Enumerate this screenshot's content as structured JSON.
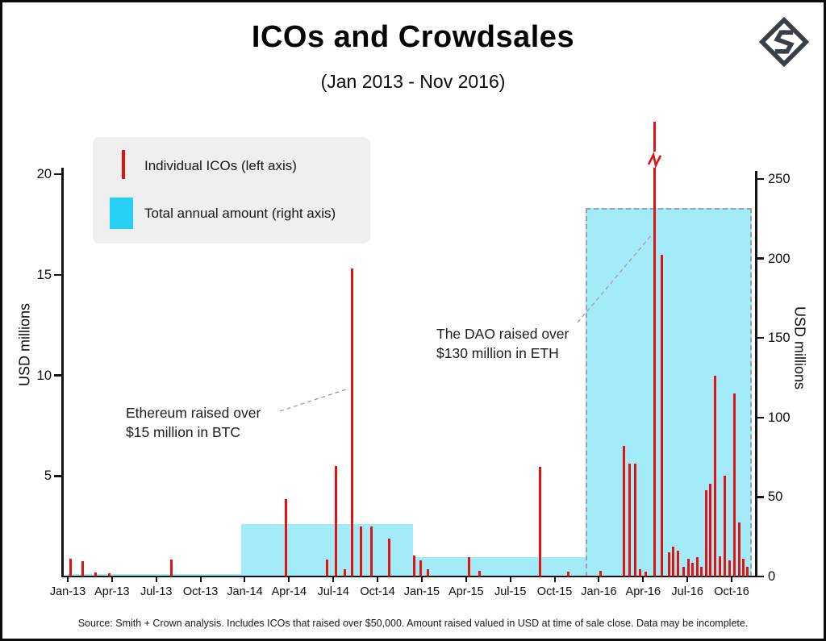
{
  "header": {
    "title": "ICOs and Crowdsales",
    "subtitle": "(Jan 2013 - Nov 2016)"
  },
  "legend": {
    "ico_label": "Individual ICOs (left axis)",
    "annual_label": "Total annual amount (right axis)"
  },
  "annotations": {
    "ethereum": {
      "line1": "Ethereum raised over",
      "line2": "$15 million in BTC"
    },
    "dao": {
      "line1": "The DAO raised over",
      "line2": "$130 million in ETH"
    }
  },
  "footer": {
    "source": "Source: Smith + Crown analysis. Includes ICOs that raised over $50,000. Amount raised valued in USD at time of sale close. Data may be incomplete."
  },
  "chart_data": {
    "type": "bar",
    "title": "ICOs and Crowdsales",
    "subtitle": "(Jan 2013 - Nov 2016)",
    "left_axis": {
      "label": "USD millions",
      "range": [
        0,
        20
      ],
      "ticks": [
        5,
        10,
        15,
        20
      ]
    },
    "right_axis": {
      "label": "USD millions",
      "range": [
        0,
        250
      ],
      "ticks": [
        0,
        50,
        100,
        150,
        200,
        250
      ]
    },
    "x_axis": {
      "tick_labels": [
        "Jan-13",
        "Apr-13",
        "Jul-13",
        "Oct-13",
        "Jan-14",
        "Apr-14",
        "Jul-14",
        "Oct-14",
        "Jan-15",
        "Apr-15",
        "Jul-15",
        "Oct-15",
        "Jan-16",
        "Apr-16",
        "Jul-16",
        "Oct-16"
      ],
      "tick_month_offsets": [
        0,
        3,
        6,
        9,
        12,
        15,
        18,
        21,
        24,
        27,
        30,
        33,
        36,
        39,
        42,
        45
      ]
    },
    "series": [
      {
        "name": "Individual ICOs (left axis)",
        "axis": "left",
        "color": "#e01212",
        "unit": "USD millions",
        "points": [
          [
            0.2,
            0.9
          ],
          [
            1.0,
            0.75
          ],
          [
            1.9,
            0.2
          ],
          [
            2.8,
            0.15
          ],
          [
            7.0,
            0.85
          ],
          [
            14.8,
            3.85
          ],
          [
            17.6,
            0.85
          ],
          [
            18.2,
            5.5
          ],
          [
            18.8,
            0.35
          ],
          [
            19.3,
            15.3
          ],
          [
            19.9,
            2.5
          ],
          [
            20.6,
            2.5
          ],
          [
            21.8,
            1.9
          ],
          [
            23.5,
            1.05
          ],
          [
            23.9,
            0.8
          ],
          [
            24.4,
            0.35
          ],
          [
            27.2,
            0.95
          ],
          [
            27.9,
            0.3
          ],
          [
            32.0,
            5.45
          ],
          [
            33.9,
            0.25
          ],
          [
            36.1,
            0.3
          ],
          [
            37.7,
            6.5
          ],
          [
            38.1,
            5.6
          ],
          [
            38.45,
            5.6
          ],
          [
            38.8,
            0.35
          ],
          [
            39.15,
            0.25
          ],
          [
            39.75,
            152,
            "offscale"
          ],
          [
            40.25,
            16.0
          ],
          [
            40.75,
            1.2
          ],
          [
            41.05,
            1.5
          ],
          [
            41.35,
            1.3
          ],
          [
            41.75,
            0.5
          ],
          [
            42.05,
            0.9
          ],
          [
            42.35,
            0.7
          ],
          [
            42.65,
            0.95
          ],
          [
            42.95,
            0.5
          ],
          [
            43.25,
            4.3
          ],
          [
            43.55,
            4.6
          ],
          [
            43.9,
            10.0
          ],
          [
            44.2,
            1.0
          ],
          [
            44.55,
            5.0
          ],
          [
            44.85,
            0.8
          ],
          [
            45.2,
            9.1
          ],
          [
            45.5,
            2.7
          ],
          [
            45.8,
            0.9
          ],
          [
            46.05,
            0.5
          ]
        ]
      },
      {
        "name": "Total annual amount (right axis)",
        "axis": "right",
        "color": "#26d0f4",
        "blocks": [
          {
            "year": "2013",
            "from_month": 0,
            "to_month": 11.75,
            "value": 1.5
          },
          {
            "year": "2014",
            "from_month": 11.75,
            "to_month": 23.4,
            "value": 33
          },
          {
            "year": "2015",
            "from_month": 23.4,
            "to_month": 35.1,
            "value": 12
          },
          {
            "year": "2016",
            "from_month": 35.1,
            "to_month": 46.35,
            "value": 232,
            "dashed_outline": true
          }
        ]
      }
    ]
  }
}
